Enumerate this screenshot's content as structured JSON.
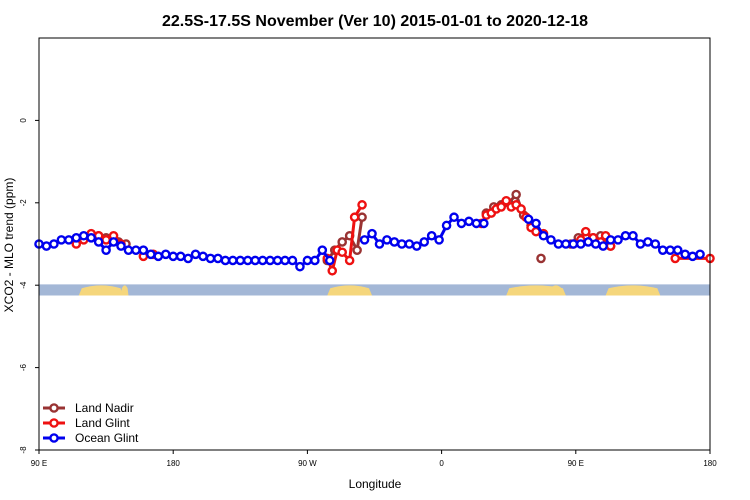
{
  "chart_data": {
    "type": "line",
    "title": "22.5S-17.5S November (Ver 10)   2015-01-01 to 2020-12-18",
    "xlabel": "Longitude",
    "ylabel": "XCO2 - MLO trend (ppm)",
    "xlim": [
      -90,
      180
    ],
    "ylim": [
      -8,
      2
    ],
    "x_ticks": [
      {
        "value": -90,
        "label": "90 E"
      },
      {
        "value": -36,
        "label": "180"
      },
      {
        "value": 18,
        "label": "90 W"
      },
      {
        "value": 72,
        "label": "0"
      },
      {
        "value": 126,
        "label": "90 E"
      },
      {
        "value": 180,
        "label": "180"
      }
    ],
    "y_ticks": [
      {
        "value": 0,
        "label": "0"
      },
      {
        "value": -2,
        "label": "-2"
      },
      {
        "value": -4,
        "label": "-4"
      },
      {
        "value": -6,
        "label": "-6"
      },
      {
        "value": -8,
        "label": "-8"
      }
    ],
    "legend_position": "bottom-left",
    "surface_band": {
      "y_range": [
        -4.25,
        -3.98
      ],
      "ocean_color": "#a3b7d6",
      "land_color": "#f5d67c",
      "land_segments": [
        [
          -74,
          -56
        ],
        [
          -57,
          -54
        ],
        [
          26,
          44
        ],
        [
          98,
          122
        ],
        [
          115,
          121
        ],
        [
          138,
          160
        ]
      ]
    },
    "series": [
      {
        "name": "Land Nadir",
        "color": "#993333",
        "segments": [
          [
            [
              -66,
              -2.8
            ],
            [
              -63,
              -2.85
            ],
            [
              -61,
              -2.9
            ],
            [
              -58,
              -2.95
            ],
            [
              -55,
              -3.0
            ]
          ],
          [
            [
              26,
              -3.4
            ],
            [
              29,
              -3.15
            ],
            [
              32,
              -2.95
            ],
            [
              35,
              -2.8
            ],
            [
              38,
              -3.15
            ],
            [
              40,
              -2.35
            ]
          ],
          [
            [
              90,
              -2.25
            ],
            [
              93,
              -2.1
            ],
            [
              96,
              -2.05
            ],
            [
              99,
              -2.0
            ],
            [
              102,
              -1.8
            ],
            [
              105,
              -2.3
            ],
            [
              108,
              -2.55
            ]
          ],
          [
            [
              124,
              -3.0
            ],
            [
              127,
              -2.85
            ],
            [
              130,
              -2.8
            ],
            [
              133,
              -2.85
            ],
            [
              136,
              -2.8
            ],
            [
              138,
              -2.85
            ],
            [
              140,
              -3.05
            ]
          ]
        ],
        "points": [
          [
            112,
            -3.35
          ]
        ]
      },
      {
        "name": "Land Glint",
        "color": "#ee1111",
        "segments": [
          [
            [
              -75,
              -3.0
            ],
            [
              -72,
              -2.9
            ],
            [
              -69,
              -2.75
            ],
            [
              -66,
              -2.8
            ],
            [
              -63,
              -2.9
            ],
            [
              -60,
              -2.8
            ],
            [
              -57,
              -3.0
            ]
          ],
          [
            [
              -48,
              -3.3
            ],
            [
              -44,
              -3.25
            ]
          ],
          [
            [
              26,
              -3.35
            ],
            [
              28,
              -3.65
            ],
            [
              30,
              -3.15
            ],
            [
              32,
              -3.2
            ],
            [
              35,
              -3.4
            ],
            [
              37,
              -2.35
            ],
            [
              40,
              -2.05
            ]
          ],
          [
            [
              88,
              -2.5
            ],
            [
              90,
              -2.3
            ],
            [
              92,
              -2.25
            ],
            [
              94,
              -2.15
            ],
            [
              96,
              -2.1
            ],
            [
              98,
              -1.95
            ],
            [
              100,
              -2.1
            ],
            [
              102,
              -2.05
            ],
            [
              104,
              -2.15
            ],
            [
              106,
              -2.35
            ],
            [
              108,
              -2.6
            ],
            [
              110,
              -2.7
            ],
            [
              113,
              -2.75
            ]
          ],
          [
            [
              125,
              -3.0
            ],
            [
              128,
              -2.9
            ],
            [
              130,
              -2.7
            ],
            [
              133,
              -2.85
            ],
            [
              136,
              -2.95
            ],
            [
              138,
              -2.8
            ],
            [
              140,
              -3.05
            ]
          ],
          [
            [
              166,
              -3.35
            ],
            [
              180,
              -3.35
            ]
          ]
        ],
        "points": []
      },
      {
        "name": "Ocean Glint",
        "color": "#0000ee",
        "segments": [
          [
            [
              -90,
              -3.0
            ],
            [
              -87,
              -3.05
            ],
            [
              -84,
              -3.0
            ],
            [
              -81,
              -2.9
            ],
            [
              -78,
              -2.9
            ],
            [
              -75,
              -2.85
            ],
            [
              -72,
              -2.8
            ],
            [
              -69,
              -2.85
            ],
            [
              -66,
              -2.95
            ],
            [
              -63,
              -3.15
            ],
            [
              -60,
              -2.95
            ],
            [
              -57,
              -3.05
            ],
            [
              -54,
              -3.15
            ],
            [
              -51,
              -3.15
            ],
            [
              -48,
              -3.15
            ],
            [
              -45,
              -3.25
            ],
            [
              -42,
              -3.3
            ],
            [
              -39,
              -3.25
            ],
            [
              -36,
              -3.3
            ],
            [
              -33,
              -3.3
            ],
            [
              -30,
              -3.35
            ],
            [
              -27,
              -3.25
            ],
            [
              -24,
              -3.3
            ],
            [
              -21,
              -3.35
            ],
            [
              -18,
              -3.35
            ],
            [
              -15,
              -3.4
            ],
            [
              -12,
              -3.4
            ],
            [
              -9,
              -3.4
            ],
            [
              -6,
              -3.4
            ],
            [
              -3,
              -3.4
            ],
            [
              0,
              -3.4
            ],
            [
              3,
              -3.4
            ],
            [
              6,
              -3.4
            ],
            [
              9,
              -3.4
            ],
            [
              12,
              -3.4
            ],
            [
              15,
              -3.55
            ],
            [
              18,
              -3.4
            ],
            [
              21,
              -3.4
            ],
            [
              24,
              -3.15
            ],
            [
              27,
              -3.4
            ]
          ],
          [
            [
              41,
              -2.9
            ],
            [
              44,
              -2.75
            ],
            [
              47,
              -3.0
            ],
            [
              50,
              -2.9
            ],
            [
              53,
              -2.95
            ],
            [
              56,
              -3.0
            ],
            [
              59,
              -3.0
            ],
            [
              62,
              -3.05
            ],
            [
              65,
              -2.95
            ],
            [
              68,
              -2.8
            ],
            [
              71,
              -2.9
            ],
            [
              74,
              -2.55
            ],
            [
              77,
              -2.35
            ],
            [
              80,
              -2.5
            ],
            [
              83,
              -2.45
            ],
            [
              86,
              -2.5
            ],
            [
              89,
              -2.5
            ]
          ],
          [
            [
              107,
              -2.4
            ],
            [
              110,
              -2.5
            ],
            [
              113,
              -2.8
            ],
            [
              116,
              -2.9
            ],
            [
              119,
              -3.0
            ],
            [
              122,
              -3.0
            ],
            [
              125,
              -3.0
            ],
            [
              128,
              -3.0
            ],
            [
              131,
              -2.95
            ],
            [
              134,
              -3.0
            ],
            [
              137,
              -3.05
            ],
            [
              140,
              -2.9
            ],
            [
              143,
              -2.9
            ],
            [
              146,
              -2.8
            ],
            [
              149,
              -2.8
            ],
            [
              152,
              -3.0
            ],
            [
              155,
              -2.95
            ],
            [
              158,
              -3.0
            ],
            [
              161,
              -3.15
            ],
            [
              164,
              -3.15
            ],
            [
              167,
              -3.15
            ],
            [
              170,
              -3.25
            ],
            [
              173,
              -3.3
            ],
            [
              176,
              -3.25
            ]
          ]
        ],
        "points": []
      }
    ]
  }
}
